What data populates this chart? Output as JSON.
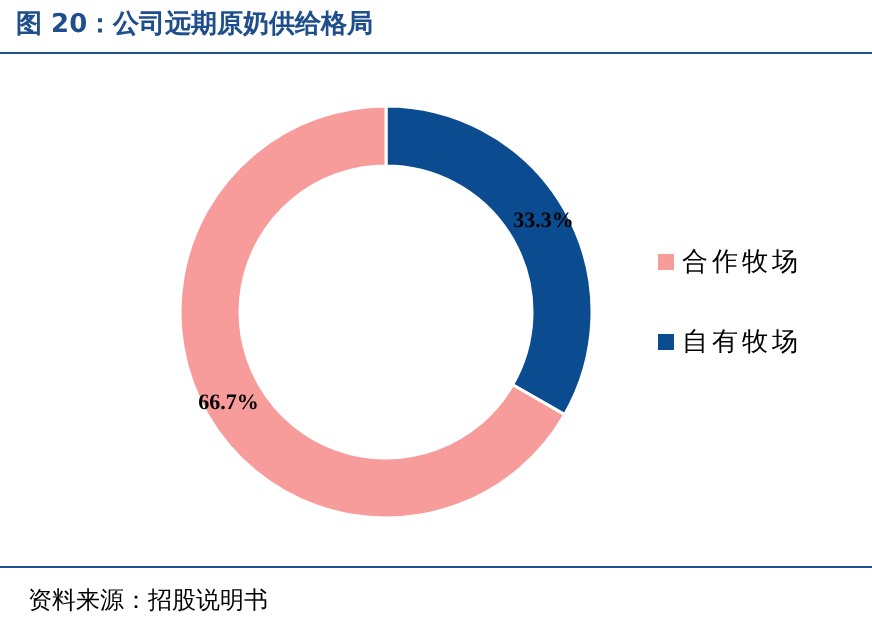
{
  "chart_data": {
    "type": "donut",
    "title": "图 20：公司远期原奶供给格局",
    "categories": [
      "自有牧场",
      "合作牧场"
    ],
    "values": [
      33.3,
      66.7
    ],
    "colors": [
      "#0b4c91",
      "#f79b9b"
    ],
    "value_labels": [
      "33.3%",
      "66.7%"
    ],
    "legend": "right",
    "annotations": [
      "资料来源：招股说明书"
    ]
  }
}
